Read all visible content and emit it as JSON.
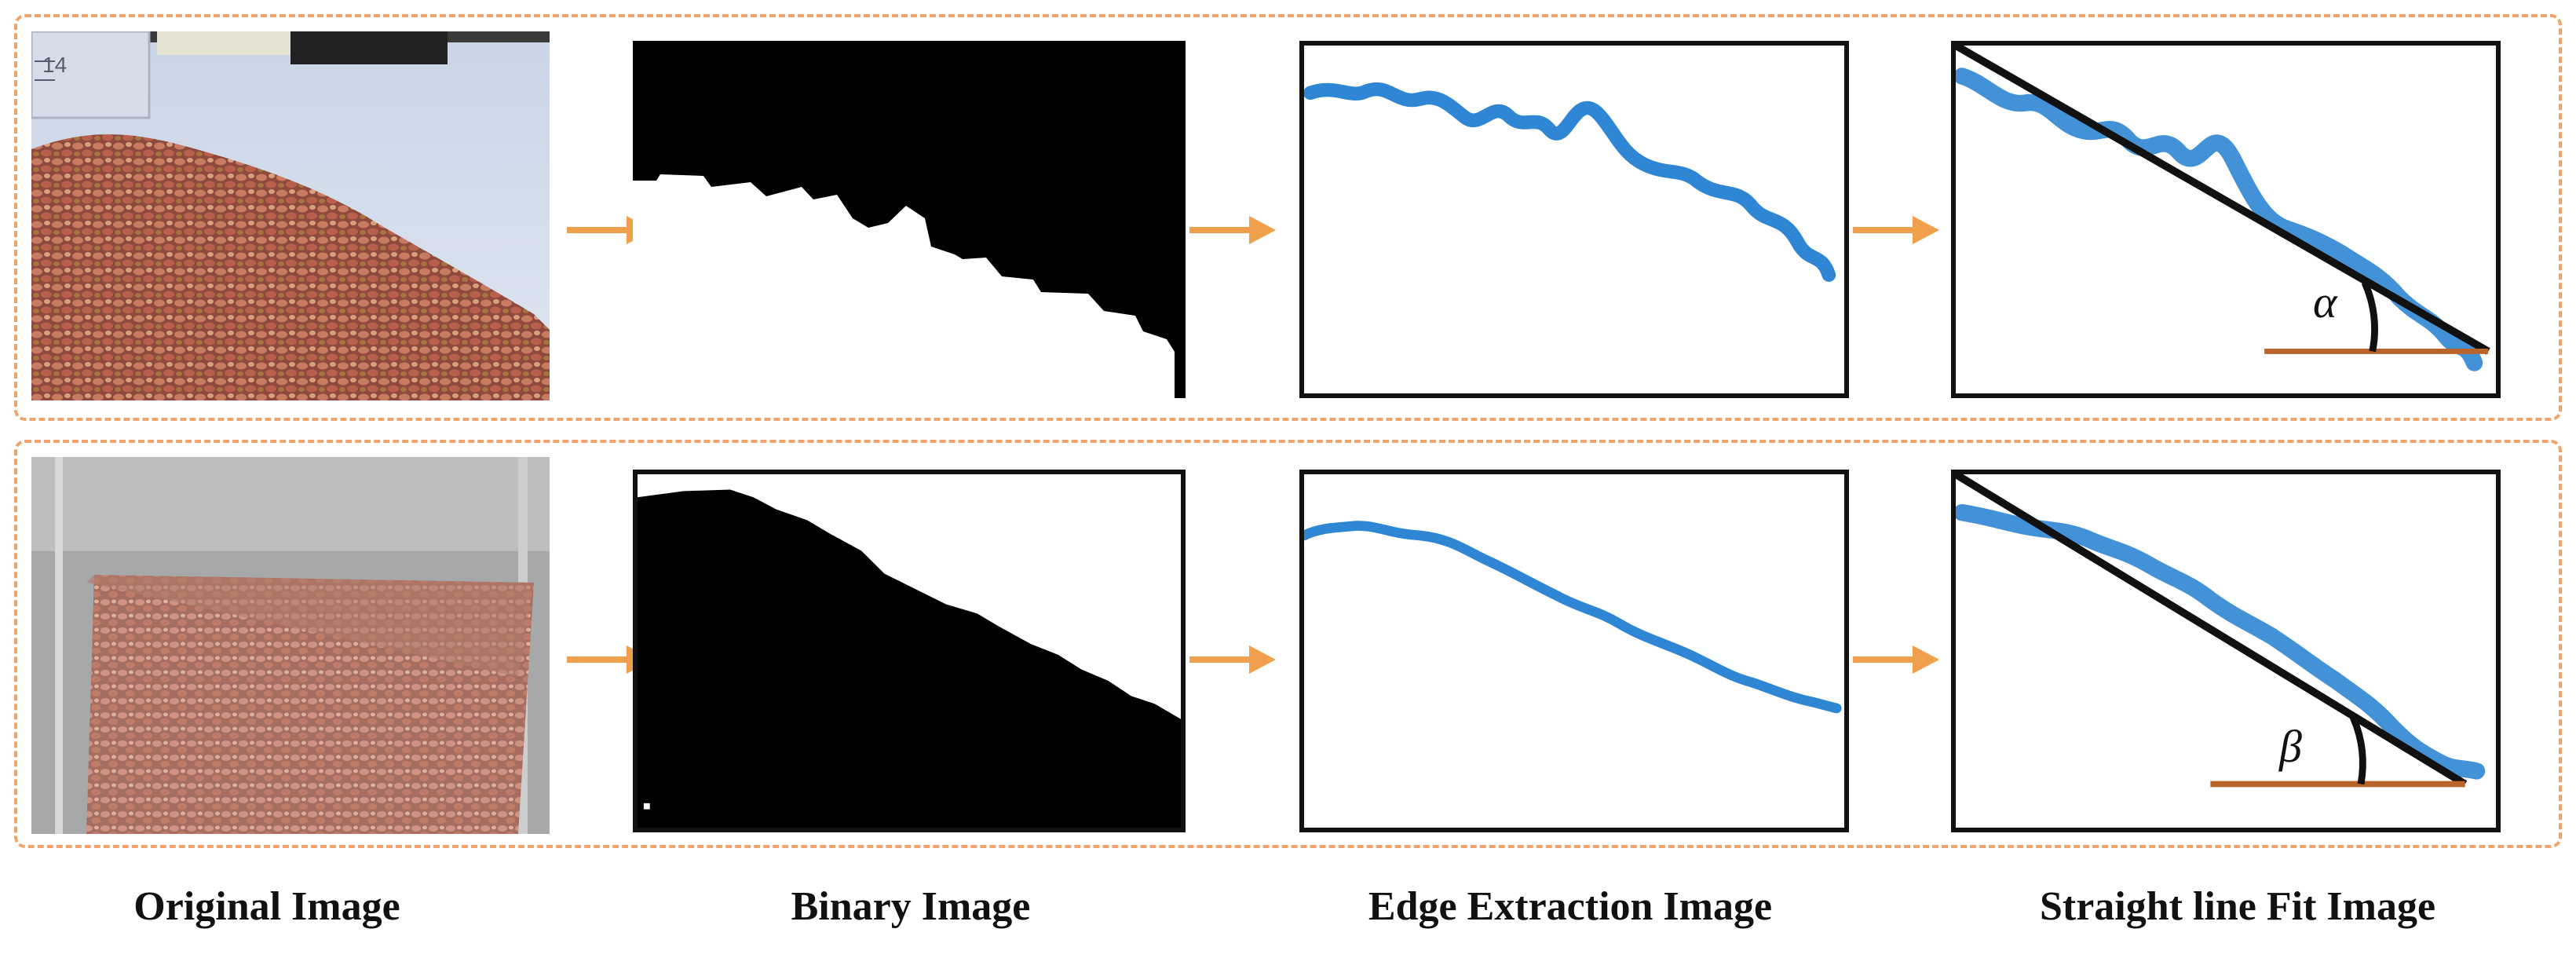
{
  "colors": {
    "dashed_border": "#f0a46b",
    "arrow": "#f0a04d",
    "edge_line": "#2f86d4",
    "fit_line": "#111111",
    "base_line": "#b8642a"
  },
  "rows": [
    {
      "angle_label": "α",
      "photo_scale_mark": "14"
    },
    {
      "angle_label": "β"
    }
  ],
  "captions": {
    "original": "Original Image",
    "binary": "Binary Image",
    "edge": "Edge Extraction Image",
    "fit": "Straight line Fit Image"
  },
  "icons": [
    "arrow-right-icon",
    "arrow-right-icon",
    "arrow-right-icon",
    "arrow-right-icon",
    "arrow-right-icon",
    "arrow-right-icon"
  ]
}
